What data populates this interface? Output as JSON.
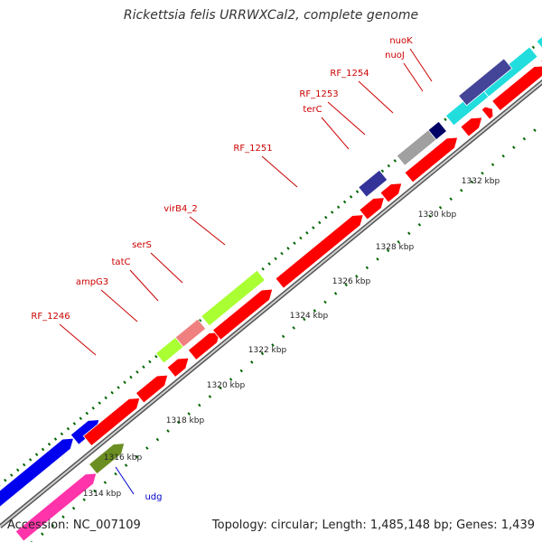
{
  "title": "Rickettsia felis URRWXCal2, complete genome",
  "footer": {
    "accession": "Accession: NC_007109",
    "summary": "Topology: circular; Length: 1,485,148 bp; Genes: 1,439"
  },
  "colors": {
    "backbone": "#999999",
    "cds": "#ff0000",
    "label_red": "#cc0000",
    "label_blue": "#0000cc",
    "dots": "#006600"
  },
  "scale_labels": [
    "1314 kbp",
    "1316 kbp",
    "1318 kbp",
    "1320 kbp",
    "1322 kbp",
    "1324 kbp",
    "1326 kbp",
    "1328 kbp",
    "1330 kbp",
    "1332 kbp"
  ],
  "gene_labels": [
    {
      "name": "nuoK",
      "color": "red"
    },
    {
      "name": "nuoJ",
      "color": "red"
    },
    {
      "name": "RF_1254",
      "color": "red"
    },
    {
      "name": "RF_1253",
      "color": "red"
    },
    {
      "name": "terC",
      "color": "red"
    },
    {
      "name": "RF_1251",
      "color": "red"
    },
    {
      "name": "virB4_2",
      "color": "red"
    },
    {
      "name": "serS",
      "color": "red"
    },
    {
      "name": "tatC",
      "color": "red"
    },
    {
      "name": "ampG3",
      "color": "red"
    },
    {
      "name": "RF_1246",
      "color": "red"
    },
    {
      "name": "udg",
      "color": "blue"
    }
  ]
}
